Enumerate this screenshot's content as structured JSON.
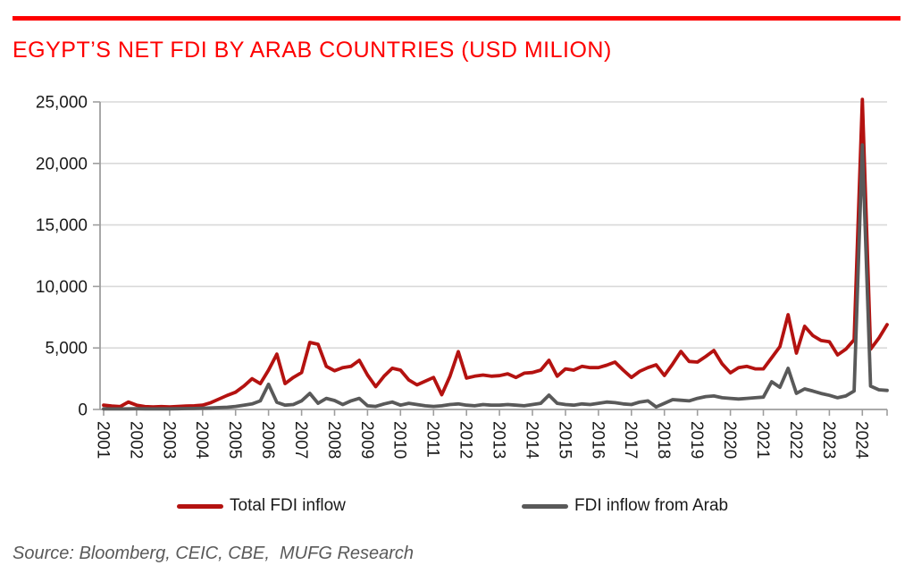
{
  "header": {
    "title": "EGYPT’S NET FDI BY ARAB COUNTRIES (USD MILION)"
  },
  "legend": [
    {
      "label": "Total FDI inflow",
      "color": "#b41210"
    },
    {
      "label": "FDI inflow from Arab",
      "color": "#595959"
    }
  ],
  "footer": {
    "source": "Source: Bloomberg, CEIC, CBE,  MUFG Research"
  },
  "colors": {
    "accent_red": "#fe0000",
    "line_red": "#b41210",
    "line_gray": "#595959",
    "gridline": "#d9d9d9",
    "axis": "#9e9e9e",
    "tick_label": "#1a1a1a"
  },
  "chart_data": {
    "type": "line",
    "title": "EGYPT’S NET FDI BY ARAB COUNTRIES (USD MILION)",
    "x_frequency": "quarterly",
    "years": [
      "2001",
      "2002",
      "2003",
      "2004",
      "2005",
      "2006",
      "2007",
      "2008",
      "2009",
      "2010",
      "2011",
      "2012",
      "2013",
      "2014",
      "2015",
      "2016",
      "2017",
      "2018",
      "2019",
      "2020",
      "2021",
      "2022",
      "2023",
      "2024"
    ],
    "ylim": [
      0,
      25000
    ],
    "yticks": [
      0,
      5000,
      10000,
      15000,
      20000,
      25000
    ],
    "grid": "horizontal",
    "legend_position": "bottom",
    "series": [
      {
        "name": "Total FDI inflow",
        "color": "#b41210",
        "values": [
          350,
          280,
          230,
          600,
          350,
          230,
          200,
          230,
          200,
          240,
          280,
          300,
          350,
          550,
          850,
          1150,
          1400,
          1900,
          2500,
          2100,
          3200,
          4500,
          2100,
          2600,
          3000,
          5450,
          5300,
          3500,
          3150,
          3400,
          3500,
          4000,
          2800,
          1850,
          2700,
          3350,
          3200,
          2400,
          2000,
          2300,
          2600,
          1200,
          2700,
          4700,
          2550,
          2700,
          2800,
          2700,
          2750,
          2900,
          2600,
          2950,
          3000,
          3200,
          4000,
          2700,
          3300,
          3200,
          3500,
          3400,
          3400,
          3600,
          3850,
          3200,
          2600,
          3100,
          3400,
          3630,
          2760,
          3700,
          4720,
          3900,
          3850,
          4300,
          4800,
          3700,
          2980,
          3400,
          3500,
          3300,
          3300,
          4200,
          5100,
          7700,
          4580,
          6760,
          6000,
          5600,
          5500,
          4430,
          4900,
          5670,
          25200,
          4900,
          5800,
          6900
        ]
      },
      {
        "name": "FDI inflow from Arab",
        "color": "#595959",
        "values": [
          50,
          40,
          40,
          50,
          60,
          50,
          40,
          50,
          50,
          60,
          70,
          80,
          100,
          120,
          150,
          180,
          250,
          350,
          450,
          700,
          2050,
          580,
          350,
          400,
          700,
          1310,
          500,
          900,
          730,
          400,
          700,
          900,
          300,
          250,
          450,
          600,
          350,
          500,
          400,
          300,
          250,
          300,
          400,
          450,
          350,
          300,
          400,
          350,
          350,
          400,
          350,
          300,
          400,
          500,
          1160,
          500,
          400,
          350,
          450,
          400,
          500,
          600,
          550,
          450,
          400,
          600,
          700,
          200,
          500,
          800,
          750,
          700,
          900,
          1050,
          1100,
          950,
          900,
          850,
          900,
          950,
          1000,
          2250,
          1800,
          3340,
          1310,
          1670,
          1500,
          1300,
          1150,
          950,
          1100,
          1500,
          21500,
          1900,
          1600,
          1550
        ]
      }
    ]
  }
}
